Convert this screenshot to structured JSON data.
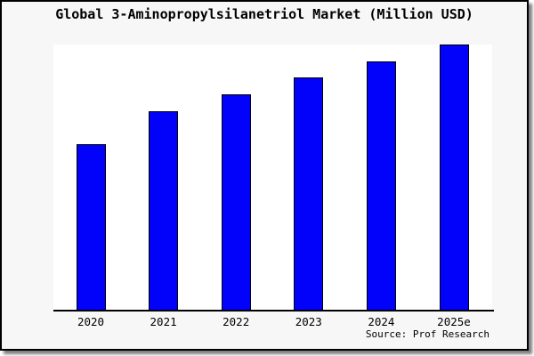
{
  "header": {
    "title": "Global 3-Aminopropylsilanetriol Market (Million USD)"
  },
  "footer": {
    "source": "Source: Prof Research"
  },
  "colors": {
    "bar_fill": "#0202fa",
    "bar_border": "#000000",
    "axis": "#000000",
    "frame_border": "#000000",
    "outer_background": "#f7f7f7",
    "plot_background": "#ffffff",
    "text": "#000000"
  },
  "chart_data": {
    "type": "bar",
    "title": "Global 3-Aminopropylsilanetriol Market (Million USD)",
    "categories": [
      "2020",
      "2021",
      "2022",
      "2023",
      "2024",
      "2025e"
    ],
    "values": [
      62.7,
      75.0,
      81.3,
      87.7,
      93.7,
      100.0
    ],
    "values_note": "no y-axis scale shown; values estimated from bar heights as an index with 2025e = 100",
    "xlabel": "",
    "ylabel": "",
    "ylim": [
      0,
      100
    ],
    "grid": false,
    "legend": false,
    "annotations": [
      "Source: Prof Research"
    ]
  }
}
